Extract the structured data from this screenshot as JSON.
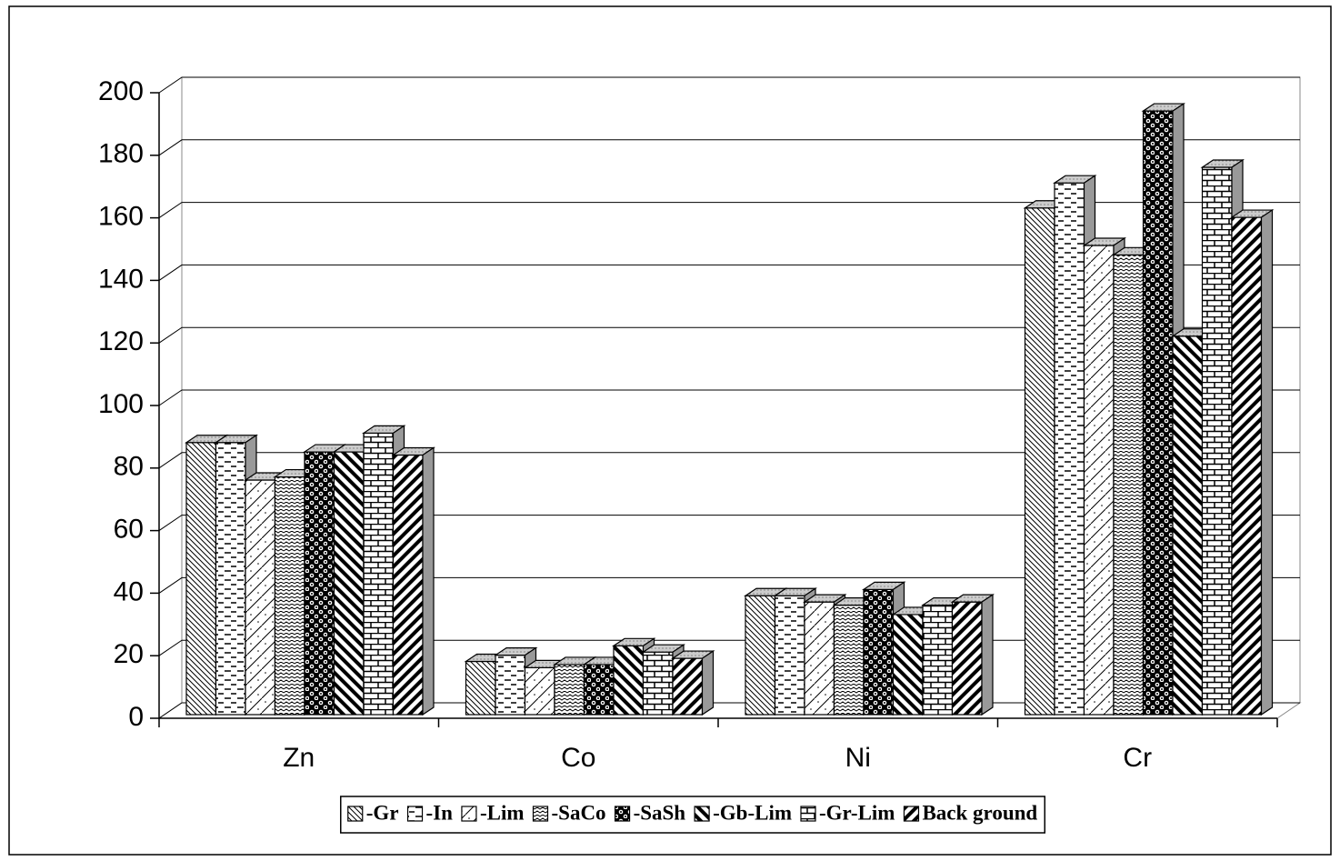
{
  "chart_data": {
    "type": "bar3d",
    "categories": [
      "Zn",
      "Co",
      "Ni",
      "Cr"
    ],
    "series": [
      {
        "name": "-Gr",
        "values": [
          87,
          17,
          38,
          162
        ]
      },
      {
        "name": "-In",
        "values": [
          87,
          19,
          38,
          170
        ]
      },
      {
        "name": "-Lim",
        "values": [
          75,
          15,
          36,
          150
        ]
      },
      {
        "name": "-SaCo",
        "values": [
          76,
          16,
          35,
          147
        ]
      },
      {
        "name": "-SaSh",
        "values": [
          84,
          16,
          40,
          193
        ]
      },
      {
        "name": "-Gb-Lim",
        "values": [
          84,
          22,
          32,
          121
        ]
      },
      {
        "name": "-Gr-Lim",
        "values": [
          90,
          20,
          35,
          175
        ]
      },
      {
        "name": "Back ground",
        "values": [
          83,
          18,
          36,
          159
        ]
      }
    ],
    "ylim": [
      0,
      200
    ],
    "yticks": [
      0,
      20,
      40,
      60,
      80,
      100,
      120,
      140,
      160,
      180,
      200
    ],
    "grid": true,
    "legend": "bottom"
  }
}
